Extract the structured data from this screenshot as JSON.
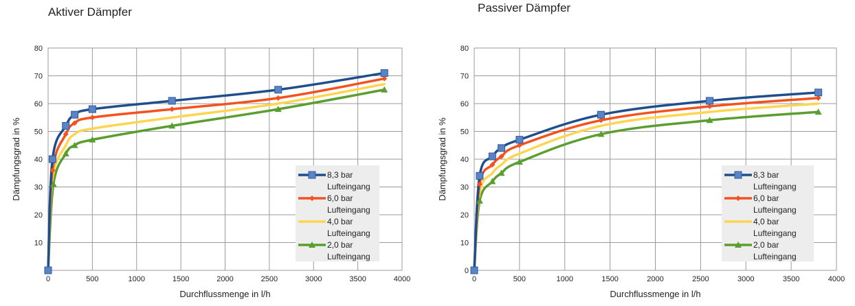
{
  "chart_data": [
    {
      "type": "line",
      "title": "Aktiver Dämpfer",
      "xlabel": "Durchflussmenge in l/h",
      "ylabel": "Dämpfungsgrad in %",
      "xlim": [
        0,
        4000
      ],
      "ylim": [
        0,
        80
      ],
      "xticks": [
        0,
        500,
        1000,
        1500,
        2000,
        2500,
        3000,
        3500,
        4000
      ],
      "yticks": [
        10,
        20,
        30,
        40,
        50,
        60,
        70,
        80
      ],
      "grid": true,
      "legend_position": "lower-right",
      "series": [
        {
          "name": "8,3 bar Lufteingang",
          "color": "#1f4e8c",
          "marker": "square",
          "x": [
            0,
            50,
            200,
            300,
            500,
            1400,
            2600,
            3800
          ],
          "y": [
            0,
            40,
            52,
            56,
            58,
            61,
            65,
            71
          ]
        },
        {
          "name": "6,0 bar Lufteingang",
          "color": "#f4511e",
          "marker": "diamond",
          "x": [
            0,
            50,
            200,
            300,
            500,
            1400,
            2600,
            3800
          ],
          "y": [
            0,
            36,
            49,
            53,
            55,
            58,
            62,
            69
          ]
        },
        {
          "name": "4,0 bar Lufteingang",
          "color": "#ffd54f",
          "marker": "none",
          "x": [
            0,
            50,
            200,
            300,
            500,
            1400,
            2600,
            3800
          ],
          "y": [
            0,
            33,
            45,
            49,
            51,
            55,
            60,
            67
          ]
        },
        {
          "name": "2,0 bar Lufteingang",
          "color": "#5a9e2f",
          "marker": "triangle",
          "x": [
            0,
            60,
            200,
            300,
            500,
            1400,
            2600,
            3800
          ],
          "y": [
            0,
            31,
            42,
            45,
            47,
            52,
            58,
            65
          ]
        }
      ]
    },
    {
      "type": "line",
      "title": "Passiver Dämpfer",
      "xlabel": "Durchflussmenge in l/h",
      "ylabel": "Dämpfungsgrad in %",
      "xlim": [
        0,
        4000
      ],
      "ylim": [
        0,
        80
      ],
      "xticks": [
        0,
        500,
        1000,
        1500,
        2000,
        2500,
        3000,
        3500,
        4000
      ],
      "yticks": [
        0,
        10,
        20,
        30,
        40,
        50,
        60,
        70,
        80
      ],
      "grid": true,
      "legend_position": "lower-right",
      "series": [
        {
          "name": "8,3 bar Lufteingang",
          "color": "#1f4e8c",
          "marker": "square",
          "x": [
            0,
            60,
            200,
            300,
            500,
            1400,
            2600,
            3800
          ],
          "y": [
            0,
            34,
            41,
            44,
            47,
            56,
            61,
            64
          ]
        },
        {
          "name": "6,0 bar Lufteingang",
          "color": "#f4511e",
          "marker": "diamond",
          "x": [
            0,
            60,
            200,
            300,
            500,
            1400,
            2600,
            3800
          ],
          "y": [
            0,
            31,
            38,
            41,
            45,
            54,
            59,
            62
          ]
        },
        {
          "name": "4,0 bar Lufteingang",
          "color": "#ffd54f",
          "marker": "none",
          "x": [
            0,
            60,
            200,
            300,
            500,
            1400,
            2600,
            3800
          ],
          "y": [
            0,
            28,
            35,
            38,
            42,
            52,
            57,
            60
          ]
        },
        {
          "name": "2,0 bar Lufteingang",
          "color": "#5a9e2f",
          "marker": "triangle",
          "x": [
            0,
            60,
            200,
            300,
            500,
            1400,
            2600,
            3800
          ],
          "y": [
            0,
            25,
            32,
            35,
            39,
            49,
            54,
            57
          ]
        }
      ]
    }
  ]
}
